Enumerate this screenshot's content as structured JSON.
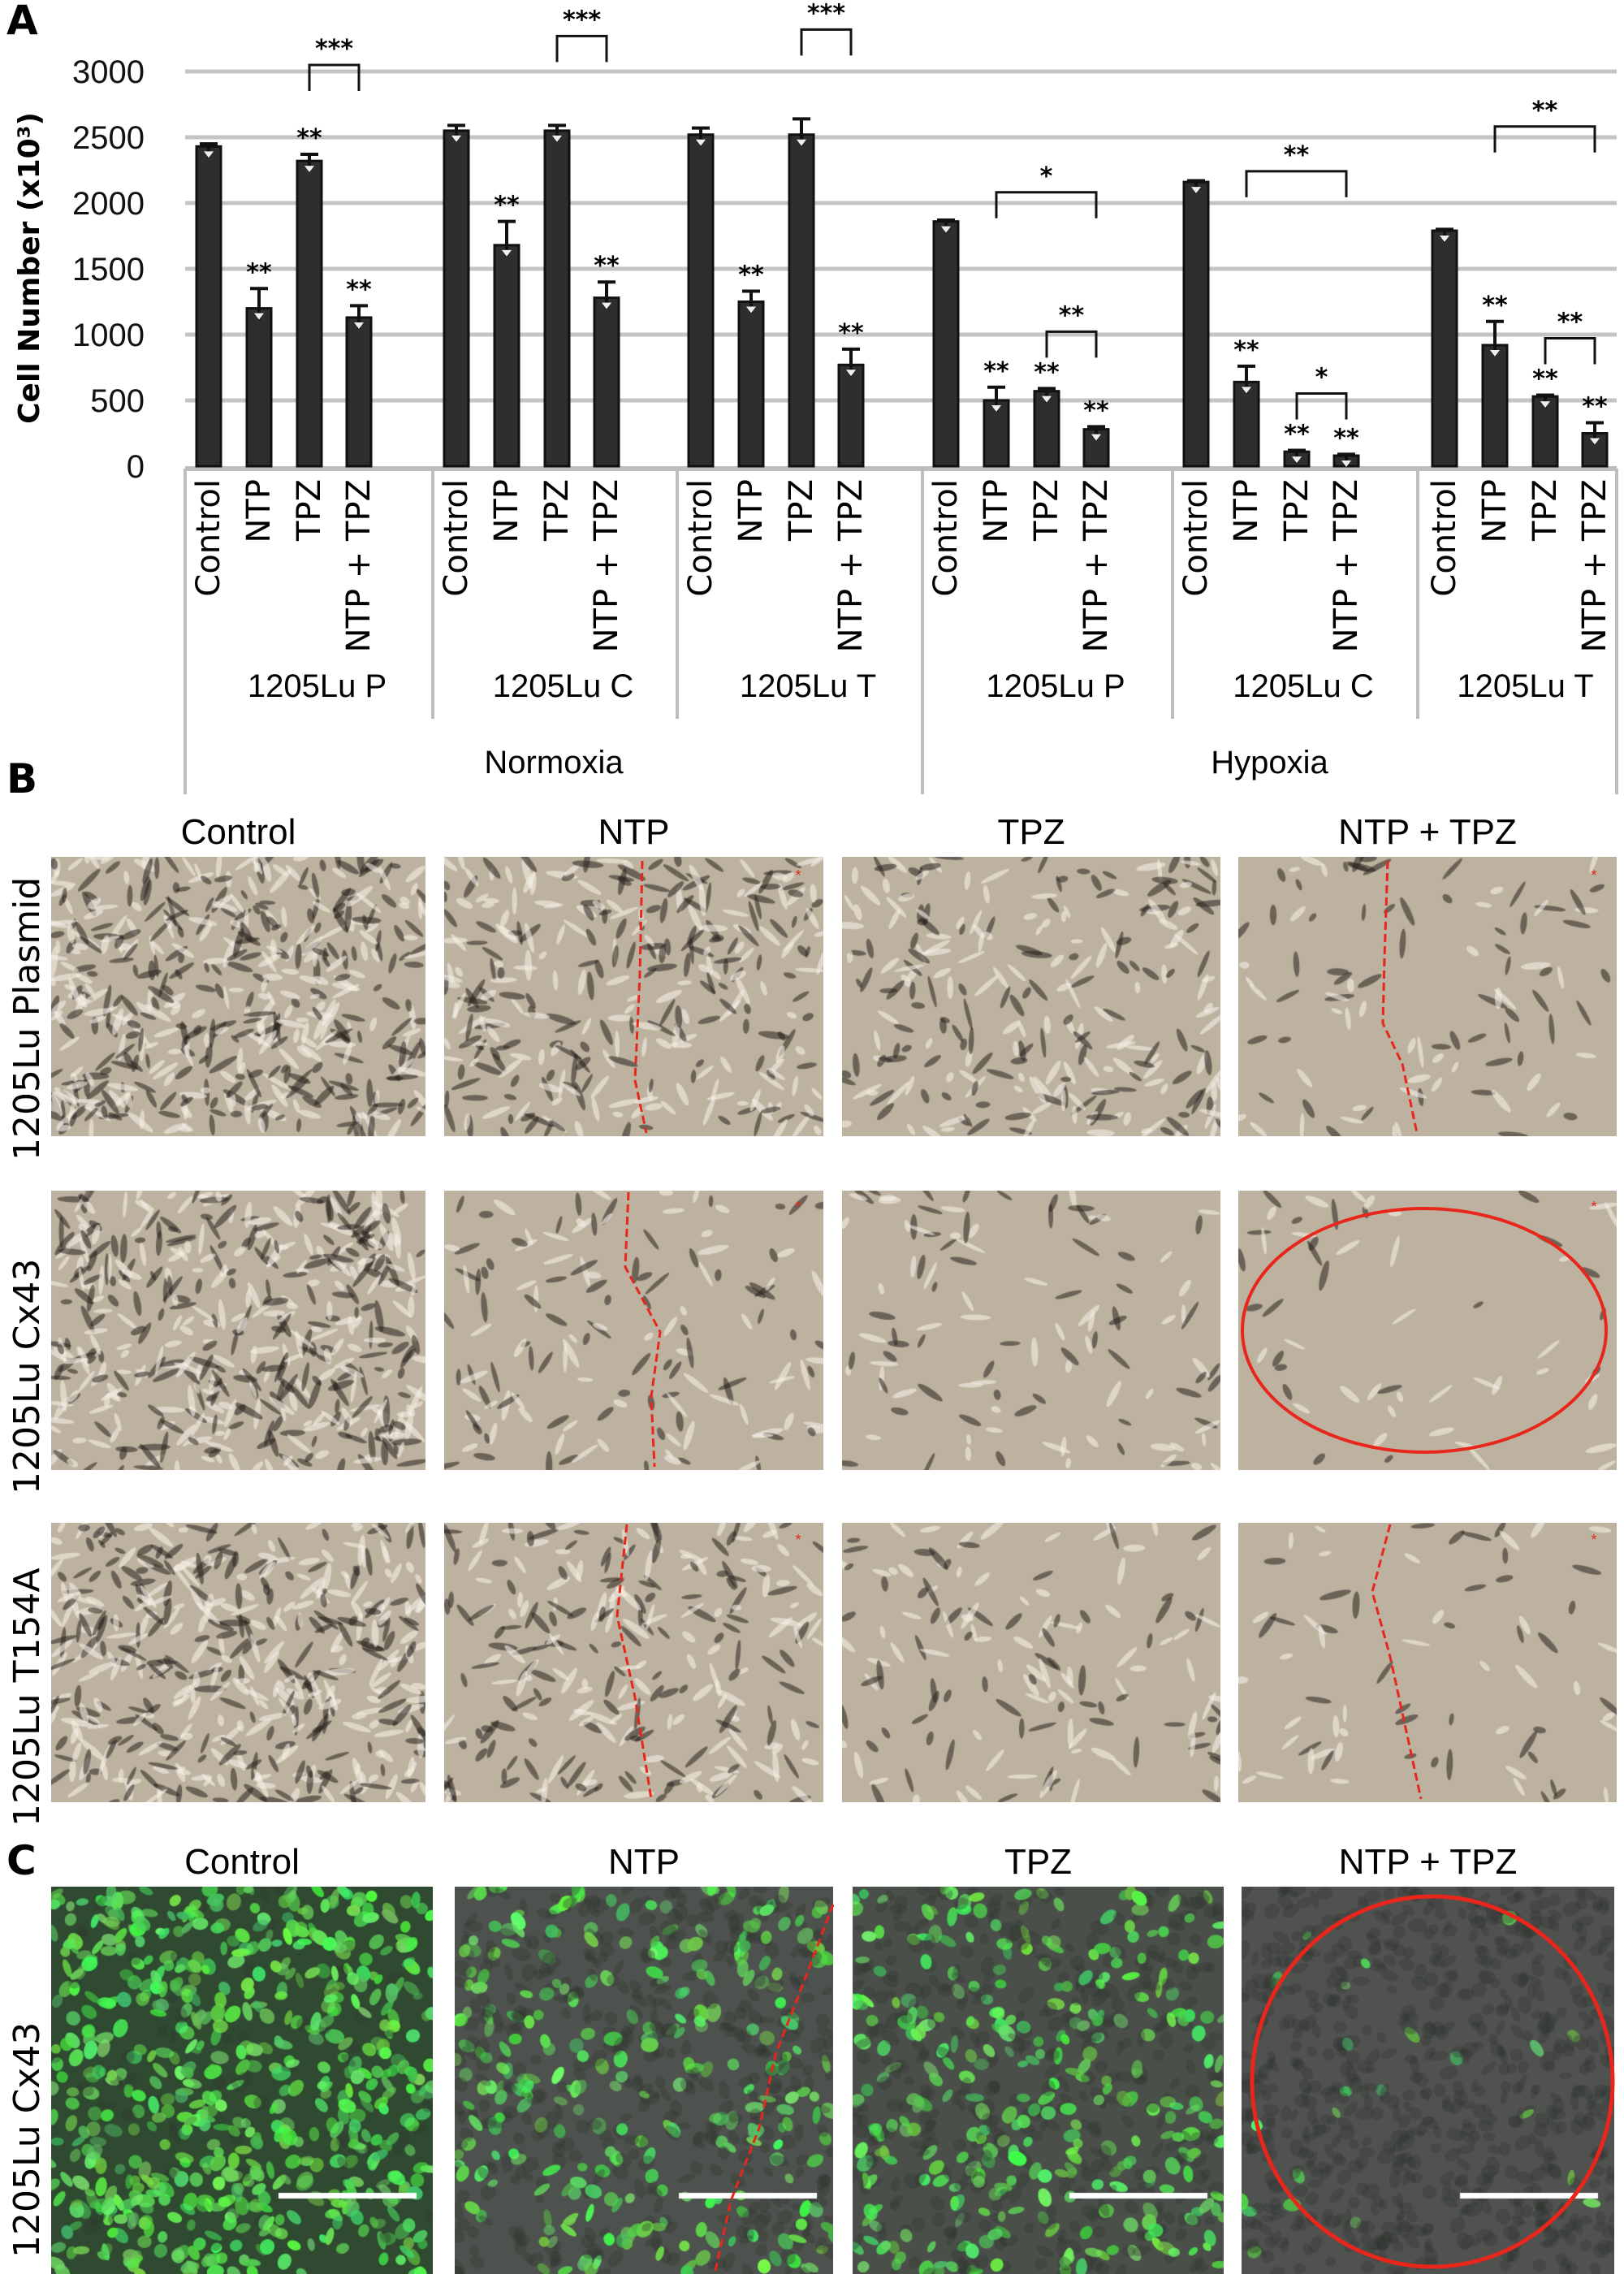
{
  "panels": {
    "a": "A",
    "b": "B",
    "c": "C"
  },
  "chart_data": {
    "type": "bar",
    "ylabel": "Cell Number (x10³)",
    "ylim": [
      0,
      3000
    ],
    "yticks": [
      "0",
      "500",
      "1000",
      "1500",
      "2000",
      "2500",
      "3000"
    ],
    "grid": true,
    "bar_color": "#2e2e2e",
    "treatments": [
      "Control",
      "NTP",
      "TPZ",
      "NTP + TPZ"
    ],
    "conditions": [
      "Normoxia",
      "Hypoxia"
    ],
    "groups": [
      {
        "condition": "Normoxia",
        "cell_line": "1205Lu P",
        "values": [
          2430,
          1200,
          2320,
          1130
        ],
        "errors": [
          20,
          150,
          50,
          90
        ],
        "stars": [
          "",
          "**",
          "**",
          "**"
        ]
      },
      {
        "condition": "Normoxia",
        "cell_line": "1205Lu C",
        "values": [
          2550,
          1680,
          2550,
          1280
        ],
        "errors": [
          40,
          180,
          40,
          120
        ],
        "stars": [
          "",
          "**",
          "",
          "**"
        ]
      },
      {
        "condition": "Normoxia",
        "cell_line": "1205Lu T",
        "values": [
          2520,
          1250,
          2520,
          770
        ],
        "errors": [
          50,
          80,
          120,
          120
        ],
        "stars": [
          "",
          "**",
          "",
          "**"
        ]
      },
      {
        "condition": "Hypoxia",
        "cell_line": "1205Lu P",
        "values": [
          1860,
          500,
          570,
          280
        ],
        "errors": [
          10,
          100,
          20,
          20
        ],
        "stars": [
          "",
          "**",
          "**",
          "**"
        ]
      },
      {
        "condition": "Hypoxia",
        "cell_line": "1205Lu C",
        "values": [
          2160,
          640,
          110,
          80
        ],
        "errors": [
          10,
          120,
          10,
          10
        ],
        "stars": [
          "",
          "**",
          "**",
          "**"
        ]
      },
      {
        "condition": "Hypoxia",
        "cell_line": "1205Lu T",
        "values": [
          1790,
          920,
          530,
          250
        ],
        "errors": [
          10,
          180,
          10,
          80
        ],
        "stars": [
          "",
          "**",
          "**",
          "**"
        ]
      }
    ],
    "brackets": [
      {
        "group": 0,
        "from": "TPZ",
        "to": "NTP + TPZ",
        "label": "***"
      },
      {
        "group": 1,
        "from": "TPZ",
        "to": "NTP + TPZ",
        "label": "***"
      },
      {
        "group": 2,
        "from": "TPZ",
        "to": "NTP + TPZ",
        "label": "***"
      },
      {
        "group": 3,
        "from": "NTP",
        "to": "NTP + TPZ",
        "label": "*"
      },
      {
        "group": 3,
        "from": "TPZ",
        "to": "NTP + TPZ",
        "label": "**"
      },
      {
        "group": 4,
        "from": "NTP",
        "to": "NTP + TPZ",
        "label": "**"
      },
      {
        "group": 4,
        "from": "TPZ",
        "to": "NTP + TPZ",
        "label": "*"
      },
      {
        "group": 5,
        "from": "NTP",
        "to": "NTP + TPZ",
        "label": "**"
      },
      {
        "group": 5,
        "from": "TPZ",
        "to": "NTP + TPZ",
        "label": "**"
      }
    ]
  },
  "panel_b": {
    "columns": [
      "Control",
      "NTP",
      "TPZ",
      "NTP + TPZ"
    ],
    "rows": [
      "1205Lu Plasmid",
      "1205Lu Cx43",
      "1205Lu T154A"
    ],
    "annotation_color": "#e8261c"
  },
  "panel_c": {
    "columns": [
      "Control",
      "NTP",
      "TPZ",
      "NTP + TPZ"
    ],
    "rows": [
      "1205Lu Cx43"
    ],
    "fluorescence_color": "#3cd83c"
  }
}
